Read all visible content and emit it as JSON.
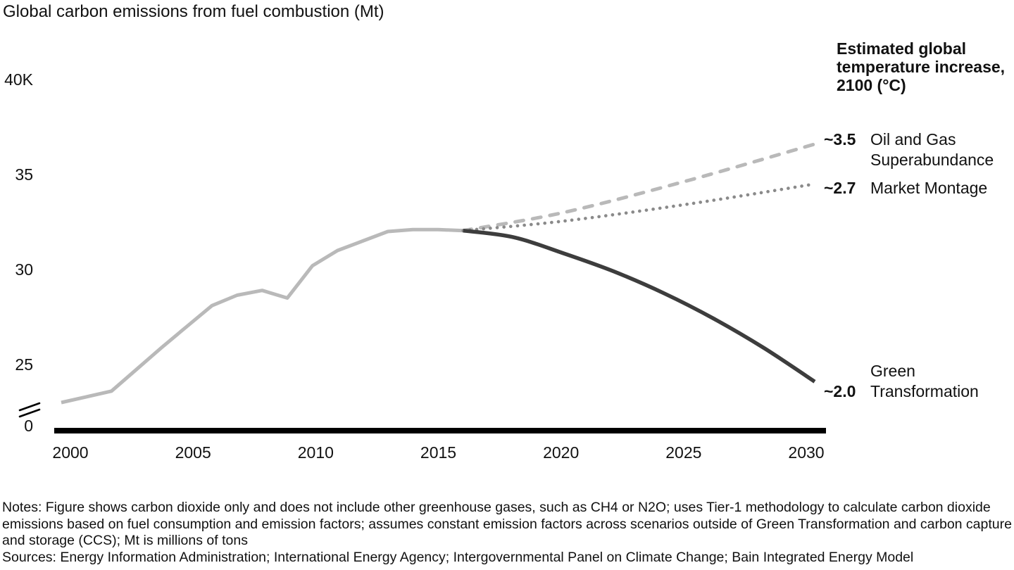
{
  "chart": {
    "title": "Global carbon emissions from fuel combustion (Mt)"
  },
  "legend": {
    "header": "Estimated global temperature increase, 2100 (°C)",
    "items": [
      {
        "value": "~3.5",
        "label": "Oil and Gas Superabundance"
      },
      {
        "value": "~2.7",
        "label": "Market Montage"
      },
      {
        "value": "~2.0",
        "label": "Green Transformation"
      }
    ]
  },
  "footnote": {
    "notes": "Notes: Figure shows carbon dioxide only and does not include other greenhouse gases, such as CH4 or N2O; uses Tier-1 methodology to calculate carbon dioxide emissions based on fuel consumption and emission factors; assumes constant emission factors across scenarios outside of Green Transformation and carbon capture and storage (CCS); Mt is millions of tons",
    "sources": "Sources: Energy Information Administration; International Energy Agency; Intergovernmental Panel on Climate Change; Bain Integrated Energy Model"
  },
  "chart_data": {
    "type": "line",
    "title": "Global carbon emissions from fuel combustion (Mt)",
    "y_unit": "thousand Mt (axis shows 40K, 35, 30, 25, 0 with axis break)",
    "xlim": [
      2000,
      2030
    ],
    "ylim": [
      0,
      40
    ],
    "grid": false,
    "legend_position": "right",
    "x_tick_years": [
      2000,
      2005,
      2010,
      2015,
      2020,
      2025,
      2030
    ],
    "y_ticks": [
      {
        "label": "40K",
        "value": 40
      },
      {
        "label": "35",
        "value": 35
      },
      {
        "label": "30",
        "value": 30
      },
      {
        "label": "25",
        "value": 25
      },
      {
        "label": "0",
        "value": 0
      }
    ],
    "y_axis_break": true,
    "series": [
      {
        "name": "Historical emissions",
        "style": "solid",
        "color": "#b9b9b9",
        "width": 5,
        "smooth": false,
        "x": [
          2000,
          2001,
          2002,
          2003,
          2004,
          2005,
          2006,
          2007,
          2008,
          2009,
          2010,
          2011,
          2012,
          2013,
          2014,
          2015,
          2016
        ],
        "y": [
          23.0,
          23.3,
          23.6,
          24.75,
          25.9,
          27.0,
          28.1,
          28.65,
          28.9,
          28.5,
          30.2,
          31.0,
          31.5,
          32.0,
          32.1,
          32.1,
          32.05
        ]
      },
      {
        "name": "Oil and Gas Superabundance",
        "temperature_2100": "~3.5",
        "style": "dashed",
        "color": "#b9b9b9",
        "width": 5,
        "smooth": true,
        "x": [
          2016,
          2020,
          2025,
          2030
        ],
        "y": [
          32.05,
          33.0,
          34.7,
          36.6
        ]
      },
      {
        "name": "Market Montage",
        "temperature_2100": "~2.7",
        "style": "dotted",
        "color": "#8a8a8a",
        "width": 4.6,
        "smooth": true,
        "x": [
          2016,
          2020,
          2025,
          2030
        ],
        "y": [
          32.05,
          32.55,
          33.45,
          34.5
        ]
      },
      {
        "name": "Green Transformation",
        "temperature_2100": "~2.0",
        "style": "solid",
        "color": "#3d3d3d",
        "width": 5.5,
        "smooth": true,
        "x": [
          2016,
          2018,
          2020,
          2022,
          2024,
          2026,
          2028,
          2030
        ],
        "y": [
          32.05,
          31.7,
          30.85,
          29.9,
          28.75,
          27.4,
          25.85,
          24.1
        ]
      }
    ]
  }
}
